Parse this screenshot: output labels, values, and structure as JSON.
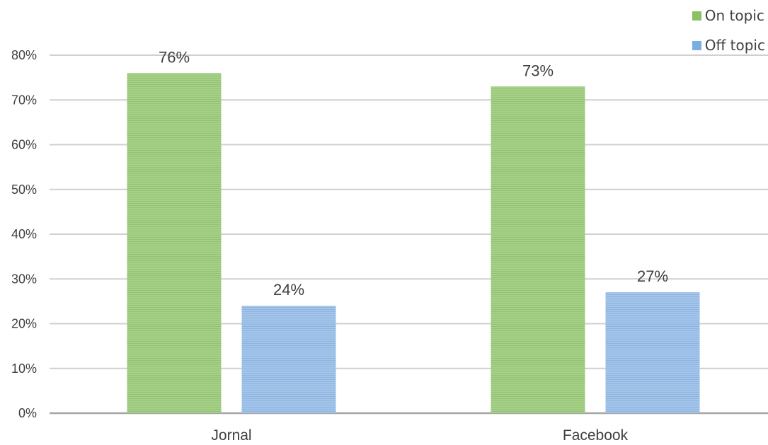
{
  "chart_data": {
    "type": "bar",
    "categories": [
      "Jornal",
      "Facebook"
    ],
    "series": [
      {
        "name": "On topic",
        "values": [
          76,
          73
        ],
        "labels": [
          "76%",
          "73%"
        ],
        "color": "#9fcc7e"
      },
      {
        "name": "Off topic",
        "values": [
          24,
          27
        ],
        "labels": [
          "24%",
          "27%"
        ],
        "color": "#9dbfe6"
      }
    ],
    "ylim": [
      0,
      80
    ],
    "yticks": [
      "0%",
      "10%",
      "20%",
      "30%",
      "40%",
      "50%",
      "60%",
      "70%",
      "80%"
    ],
    "grid": true,
    "legend_position": "top-right",
    "title": "",
    "xlabel": "",
    "ylabel": ""
  }
}
